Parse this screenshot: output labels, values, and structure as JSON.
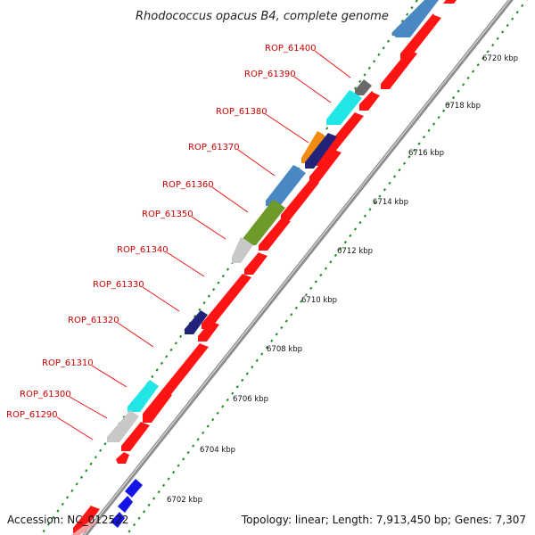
{
  "title": "Rhodococcus opacus B4, complete genome",
  "accession": "Accession: NC_012522",
  "topology": "Topology: linear; Length: 7,913,450 bp; Genes: 7,307",
  "colors": {
    "red_strand": "#ff1414",
    "scale_dots": "#1a8a1a",
    "gene_label": "#cc0000",
    "backbone": "#8c8c8c"
  },
  "gene_labels": [
    {
      "text": "ROP_61400",
      "target_color": "#6a6a6a"
    },
    {
      "text": "ROP_61390",
      "target_color": "#22e5e5"
    },
    {
      "text": "ROP_61380",
      "target_color": "#f08c10"
    },
    {
      "text": "ROP_61370",
      "target_color": "#4a88c4"
    },
    {
      "text": "ROP_61360",
      "target_color": "#4a88c4"
    },
    {
      "text": "ROP_61350",
      "target_color": "#6e9a2a"
    },
    {
      "text": "ROP_61340",
      "target_color": "#c8c8c8"
    },
    {
      "text": "ROP_61330",
      "target_color": "#22227a"
    },
    {
      "text": "ROP_61320",
      "target_color": "#ff1414"
    },
    {
      "text": "ROP_61310",
      "target_color": "#22e5e5"
    },
    {
      "text": "ROP_61300",
      "target_color": "#c8c8c8"
    },
    {
      "text": "ROP_61290",
      "target_color": "#ff1414"
    }
  ],
  "scale_labels": [
    "6720 kbp",
    "6718 kbp",
    "6716 kbp",
    "6714 kbp",
    "6712 kbp",
    "6710 kbp",
    "6708 kbp",
    "6706 kbp",
    "6704 kbp",
    "6702 kbp"
  ]
}
